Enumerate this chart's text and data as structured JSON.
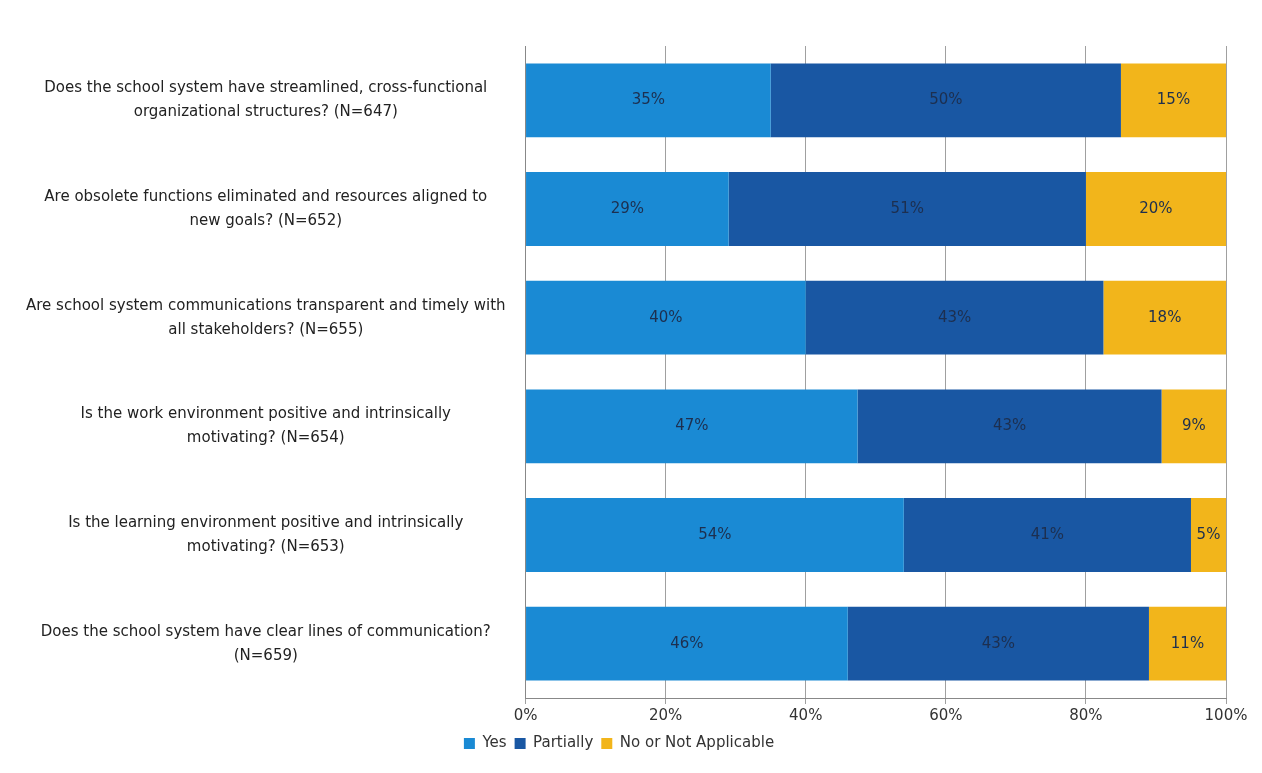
{
  "chart_data": {
    "type": "bar",
    "orientation": "horizontal",
    "stacked": true,
    "categories": [
      "Does the school system have streamlined, cross-functional organizational structures? (N=647)",
      "Are obsolete functions eliminated and resources aligned to new goals? (N=652)",
      "Are school system communications transparent and timely with all stakeholders? (N=655)",
      "Is the work environment positive and intrinsically motivating? (N=654)",
      "Is the learning environment positive and intrinsically motivating? (N=653)",
      "Does the school system have clear lines of communication? (N=659)"
    ],
    "series": [
      {
        "name": "Yes",
        "color": "#1a8ad4",
        "values": [
          35,
          29,
          40,
          47.4,
          54,
          46
        ],
        "value_labels": [
          "35%",
          "29%",
          "40%",
          "47%",
          "54%",
          "46%"
        ]
      },
      {
        "name": "Partially",
        "color": "#1957a3",
        "values": [
          50,
          51,
          42.5,
          43.4,
          41,
          43
        ],
        "value_labels": [
          "50%",
          "51%",
          "43%",
          "43%",
          "41%",
          "43%"
        ]
      },
      {
        "name": "No or Not Applicable",
        "color": "#f2b51b",
        "values": [
          15,
          20,
          17.5,
          9.2,
          5,
          11
        ],
        "value_labels": [
          "15%",
          "20%",
          "18%",
          "9%",
          "5%",
          "11%"
        ]
      }
    ],
    "xlim": [
      0,
      100
    ],
    "xticks": [
      {
        "value": 0,
        "label": "0%"
      },
      {
        "value": 20,
        "label": "20%"
      },
      {
        "value": 40,
        "label": "40%"
      },
      {
        "value": 60,
        "label": "60%"
      },
      {
        "value": 80,
        "label": "80%"
      },
      {
        "value": 100,
        "label": "100%"
      }
    ],
    "grid": "x",
    "legend": "bottom"
  }
}
